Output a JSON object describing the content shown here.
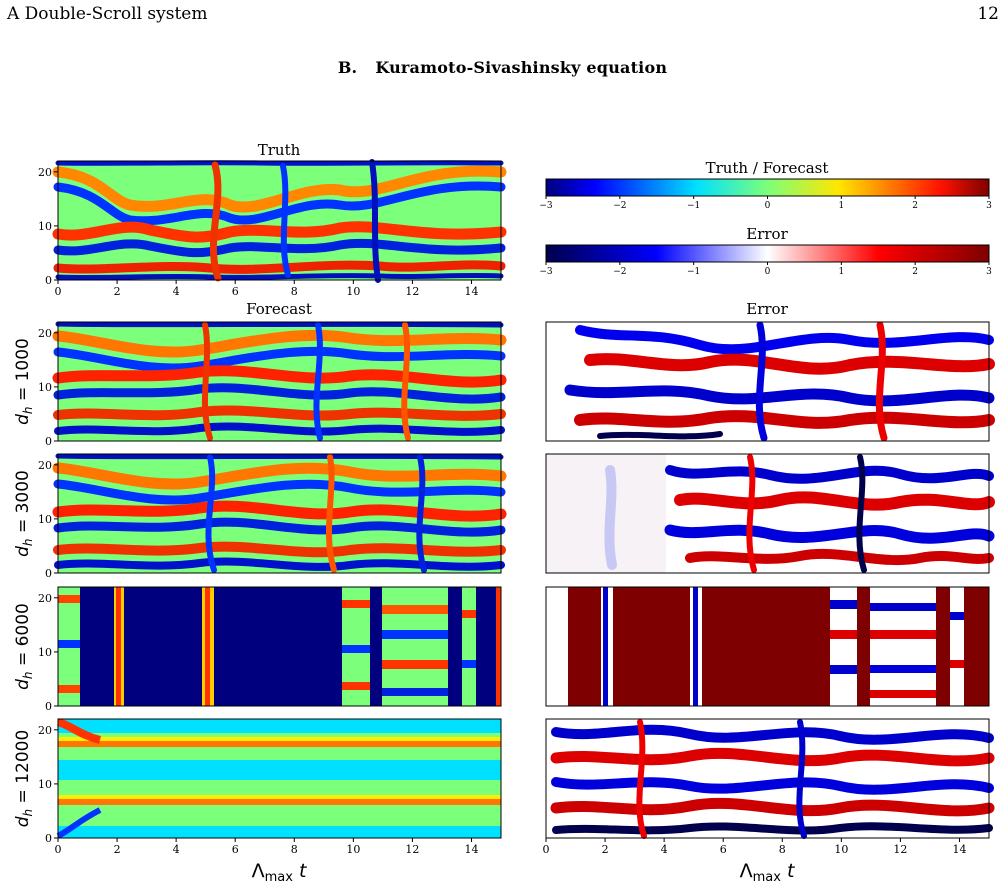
{
  "header": {
    "left": "A   Double-Scroll system",
    "page_number": "12"
  },
  "section": {
    "label": "B.",
    "title": "Kuramoto-Sivashinsky equation"
  },
  "panel_titles": {
    "truth": "Truth",
    "forecast": "Forecast",
    "error": "Error"
  },
  "colorbars": [
    {
      "title": "Truth / Forecast",
      "colormap": "jet",
      "ticks": [
        "−3",
        "−2",
        "−1",
        "0",
        "1",
        "2",
        "3"
      ],
      "range": [
        -3,
        3
      ]
    },
    {
      "title": "Error",
      "colormap": "seismic",
      "ticks": [
        "−3",
        "−2",
        "−1",
        "0",
        "1",
        "2",
        "3"
      ],
      "range": [
        -3,
        3
      ]
    }
  ],
  "rows": [
    {
      "label": "d_h = 1000",
      "sub": "h",
      "value": "1000"
    },
    {
      "label": "d_h = 3000",
      "sub": "h",
      "value": "3000"
    },
    {
      "label": "d_h = 6000",
      "sub": "h",
      "value": "6000"
    },
    {
      "label": "d_h = 12000",
      "sub": "h",
      "value": "12000"
    }
  ],
  "axes": {
    "x_ticks": [
      "0",
      "2",
      "4",
      "6",
      "8",
      "10",
      "12",
      "14"
    ],
    "y_ticks": [
      "0",
      "10",
      "20"
    ],
    "xlabel": "Λmax t"
  },
  "colors": {
    "jet_low": "#00007f",
    "jet_high": "#7f0000",
    "seismic_low": "#00004c",
    "seismic_high": "#7f0000"
  }
}
